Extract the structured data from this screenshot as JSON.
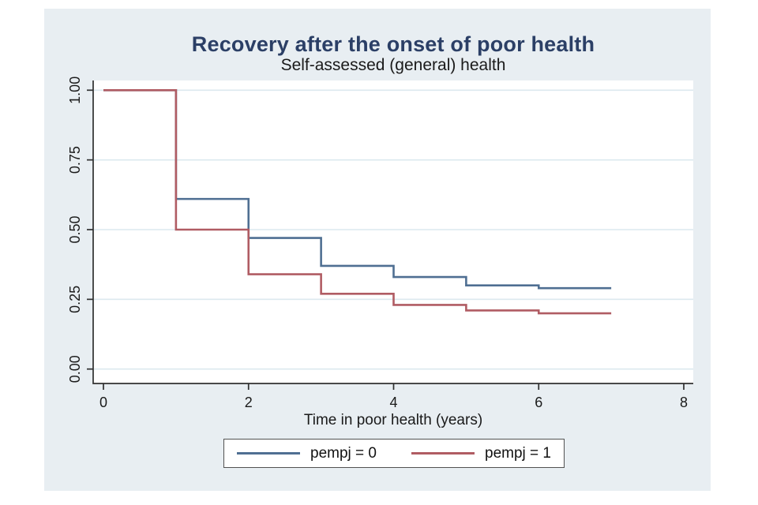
{
  "window": {
    "kind": "stata-graph"
  },
  "chart_data": {
    "type": "line",
    "subtype": "kaplan-meier-step",
    "title": "Recovery after the onset of poor health",
    "subtitle": "Self-assessed (general) health",
    "xlabel": "Time in poor health (years)",
    "ylabel": "",
    "xlim": [
      0,
      8
    ],
    "ylim": [
      0,
      1
    ],
    "x_ticks": [
      {
        "value": 0,
        "label": "0"
      },
      {
        "value": 2,
        "label": "2"
      },
      {
        "value": 4,
        "label": "4"
      },
      {
        "value": 6,
        "label": "6"
      },
      {
        "value": 8,
        "label": "8"
      }
    ],
    "y_ticks": [
      {
        "value": 0.0,
        "label": "0.00"
      },
      {
        "value": 0.25,
        "label": "0.25"
      },
      {
        "value": 0.5,
        "label": "0.50"
      },
      {
        "value": 0.75,
        "label": "0.75"
      },
      {
        "value": 1.0,
        "label": "1.00"
      }
    ],
    "grid": true,
    "legend_position": "bottom-center",
    "series": [
      {
        "name": "pempj = 0",
        "color": "#4f6f92",
        "step_times": [
          0,
          1,
          2,
          3,
          4,
          5,
          6
        ],
        "values": [
          1.0,
          0.61,
          0.47,
          0.37,
          0.33,
          0.3,
          0.29
        ],
        "end_time": 7
      },
      {
        "name": "pempj = 1",
        "color": "#b05c63",
        "step_times": [
          0,
          1,
          2,
          3,
          4,
          5,
          6
        ],
        "values": [
          1.0,
          0.5,
          0.34,
          0.27,
          0.23,
          0.21,
          0.2
        ],
        "end_time": 7
      }
    ]
  },
  "colors": {
    "outer_background": "#ffffff",
    "graph_background": "#e8eef2",
    "plot_background": "#ffffff",
    "gridline": "#dce9ef",
    "axis": "#303030",
    "title": "#2b3f66",
    "text": "#1a1a1a",
    "legend_border": "#525252",
    "series_blue": "#4f6f92",
    "series_red": "#b05c63"
  }
}
